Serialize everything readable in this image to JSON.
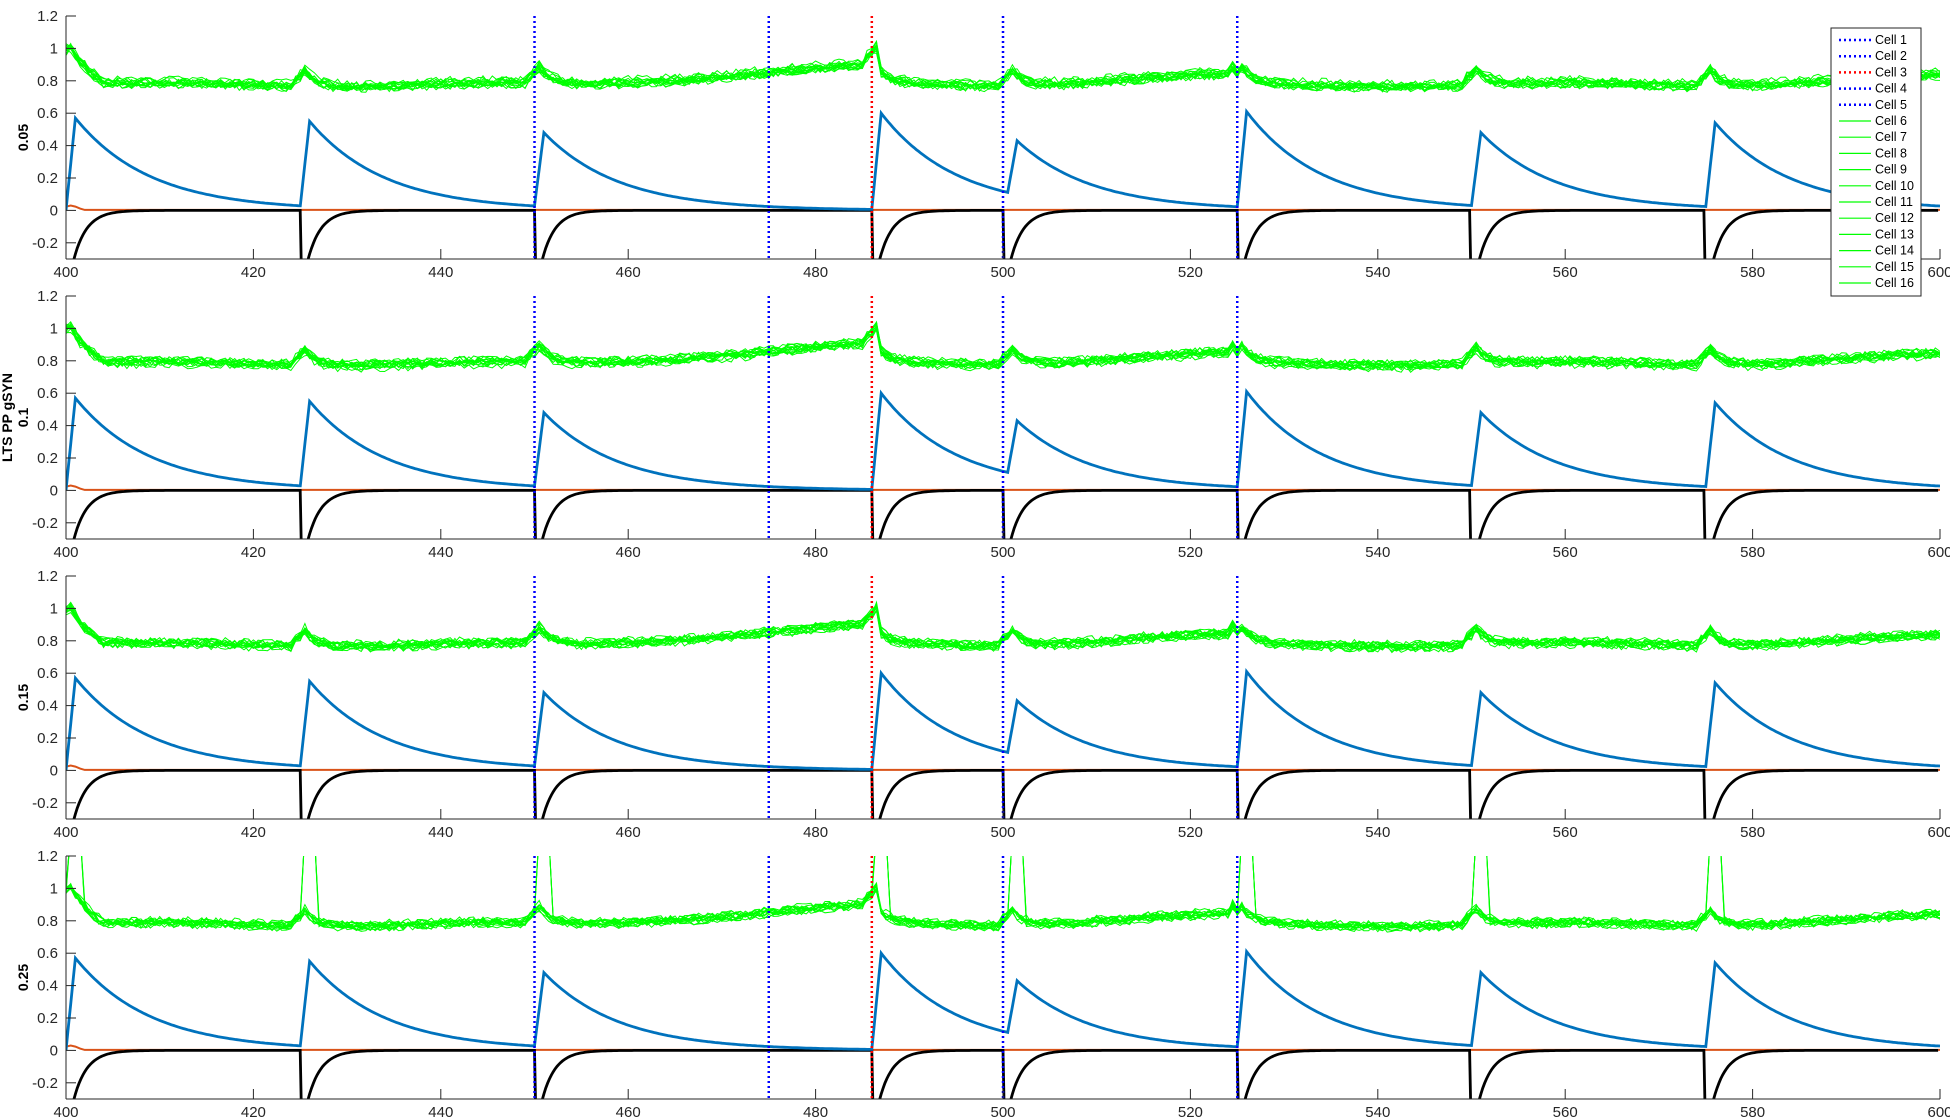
{
  "figure": {
    "ylabel_group": "LTS PP gSYN"
  },
  "legend": {
    "entries": [
      {
        "label": "Cell 1",
        "style": "dotted",
        "color": "#0000ff"
      },
      {
        "label": "Cell 2",
        "style": "dotted",
        "color": "#0000ff"
      },
      {
        "label": "Cell 3",
        "style": "dotted",
        "color": "#ff0000"
      },
      {
        "label": "Cell 4",
        "style": "dotted",
        "color": "#0000ff"
      },
      {
        "label": "Cell 5",
        "style": "dotted",
        "color": "#0000ff"
      },
      {
        "label": "Cell 6",
        "style": "solid",
        "color": "#00ff00"
      },
      {
        "label": "Cell 7",
        "style": "solid",
        "color": "#00ff00"
      },
      {
        "label": "Cell 8",
        "style": "solid",
        "color": "#00ff00"
      },
      {
        "label": "Cell 9",
        "style": "solid",
        "color": "#00ff00"
      },
      {
        "label": "Cell 10",
        "style": "solid",
        "color": "#00ff00"
      },
      {
        "label": "Cell 11",
        "style": "solid",
        "color": "#00ff00"
      },
      {
        "label": "Cell 12",
        "style": "solid",
        "color": "#00ff00"
      },
      {
        "label": "Cell 13",
        "style": "solid",
        "color": "#00ff00"
      },
      {
        "label": "Cell 14",
        "style": "solid",
        "color": "#00ff00"
      },
      {
        "label": "Cell 15",
        "style": "solid",
        "color": "#00ff00"
      },
      {
        "label": "Cell 16",
        "style": "solid",
        "color": "#00ff00"
      }
    ]
  },
  "chart_data": {
    "type": "line",
    "xlim": [
      400,
      600
    ],
    "ylim": [
      -0.3,
      1.2
    ],
    "xticks": [
      400,
      420,
      440,
      460,
      480,
      500,
      520,
      540,
      560,
      580,
      600
    ],
    "yticks": [
      -0.2,
      0,
      0.2,
      0.4,
      0.6,
      0.8,
      1,
      1.2
    ],
    "grid": false,
    "legend_position": "top-right",
    "colors": {
      "green": "#00ff00",
      "blue_trace": "#0072bd",
      "orange_trace": "#d95319",
      "black_trace": "#000000",
      "blue_marker": "#0000ff",
      "red_marker": "#ff0000"
    },
    "event_markers": [
      {
        "x": 450,
        "color": "#0000ff"
      },
      {
        "x": 475,
        "color": "#0000ff"
      },
      {
        "x": 486,
        "color": "#ff0000"
      },
      {
        "x": 500,
        "color": "#0000ff"
      },
      {
        "x": 525,
        "color": "#0000ff"
      }
    ],
    "synaptic_peaks": [
      {
        "x": 401,
        "y": 0.57
      },
      {
        "x": 426,
        "y": 0.55
      },
      {
        "x": 451,
        "y": 0.48
      },
      {
        "x": 487,
        "y": 0.6
      },
      {
        "x": 501.5,
        "y": 0.43
      },
      {
        "x": 526,
        "y": 0.61
      },
      {
        "x": 551,
        "y": 0.48
      },
      {
        "x": 576,
        "y": 0.54
      }
    ],
    "black_trace_drops": [
      425,
      450,
      486,
      500,
      525,
      550,
      575,
      600
    ],
    "panels": [
      {
        "ylabel": "0.05",
        "show_legend": true,
        "spikes": false
      },
      {
        "ylabel": "0.1",
        "show_legend": false,
        "spikes": false
      },
      {
        "ylabel": "0.15",
        "show_legend": false,
        "spikes": false
      },
      {
        "ylabel": "0.25",
        "show_legend": false,
        "spikes": true
      }
    ]
  }
}
